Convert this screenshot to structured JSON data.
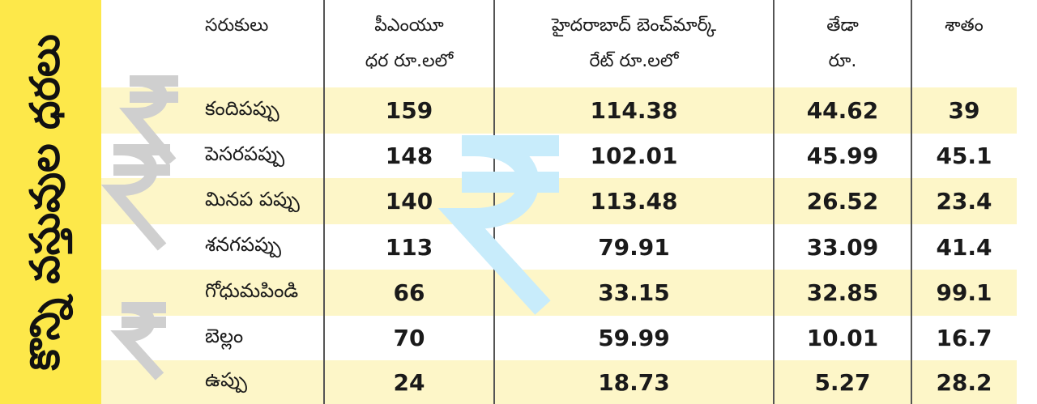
{
  "side_title": "కొన్ని వస్తువుల ధరలు",
  "table": {
    "header": [
      [
        "సరుకులు"
      ],
      [
        "పీఎంయూ",
        "ధర రూ.లలో"
      ],
      [
        "హైదరాబాద్ బెంచ్‌మార్క్",
        "రేట్ రూ.లలో"
      ],
      [
        "తేడా",
        "రూ."
      ],
      [
        "శాతం"
      ]
    ],
    "rows": [
      [
        "కందిపప్పు",
        159,
        114.38,
        44.62,
        39
      ],
      [
        "పెసరపప్పు",
        148,
        102.01,
        45.99,
        45.1
      ],
      [
        "మినప పప్పు",
        140,
        113.48,
        26.52,
        23.4
      ],
      [
        "శనగపప్పు",
        113,
        79.91,
        33.09,
        41.4
      ],
      [
        "గోధుమపిండి",
        66,
        33.15,
        32.85,
        99.1
      ],
      [
        "బెల్లం",
        70,
        59.99,
        10.01,
        16.7
      ],
      [
        "ఉప్పు",
        24,
        18.73,
        5.27,
        28.2
      ]
    ]
  }
}
